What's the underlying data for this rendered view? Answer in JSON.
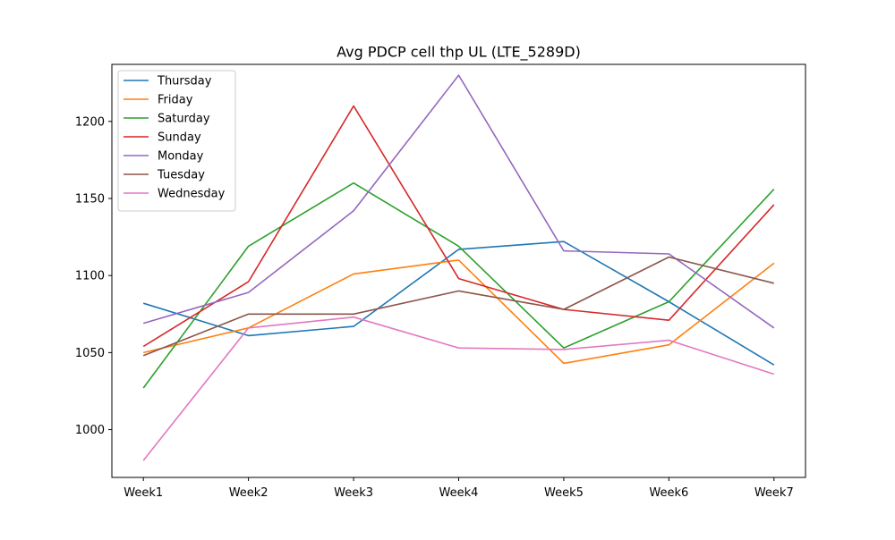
{
  "chart_data": {
    "type": "line",
    "title": "Avg PDCP cell thp UL (LTE_5289D)",
    "xlabel": "",
    "ylabel": "",
    "categories": [
      "Week1",
      "Week2",
      "Week3",
      "Week4",
      "Week5",
      "Week6",
      "Week7"
    ],
    "ylim": [
      969,
      1237
    ],
    "yticks": [
      1000,
      1050,
      1100,
      1150,
      1200
    ],
    "grid": false,
    "legend_position": "top-left",
    "series": [
      {
        "name": "Thursday",
        "color": "#1f77b4",
        "values": [
          1082,
          1061,
          1067,
          1117,
          1122,
          1083,
          1042
        ]
      },
      {
        "name": "Friday",
        "color": "#ff7f0e",
        "values": [
          1050,
          1066,
          1101,
          1110,
          1043,
          1055,
          1108
        ]
      },
      {
        "name": "Saturday",
        "color": "#2ca02c",
        "values": [
          1027,
          1119,
          1160,
          1119,
          1053,
          1083,
          1156
        ]
      },
      {
        "name": "Sunday",
        "color": "#d62728",
        "values": [
          1054,
          1096,
          1210,
          1098,
          1078,
          1071,
          1146
        ]
      },
      {
        "name": "Monday",
        "color": "#9467bd",
        "values": [
          1069,
          1089,
          1142,
          1230,
          1116,
          1114,
          1066
        ]
      },
      {
        "name": "Tuesday",
        "color": "#8c564b",
        "values": [
          1048,
          1075,
          1075,
          1090,
          1078,
          1112,
          1095
        ]
      },
      {
        "name": "Wednesday",
        "color": "#e377c2",
        "values": [
          980,
          1066,
          1073,
          1053,
          1052,
          1058,
          1036
        ]
      }
    ]
  }
}
